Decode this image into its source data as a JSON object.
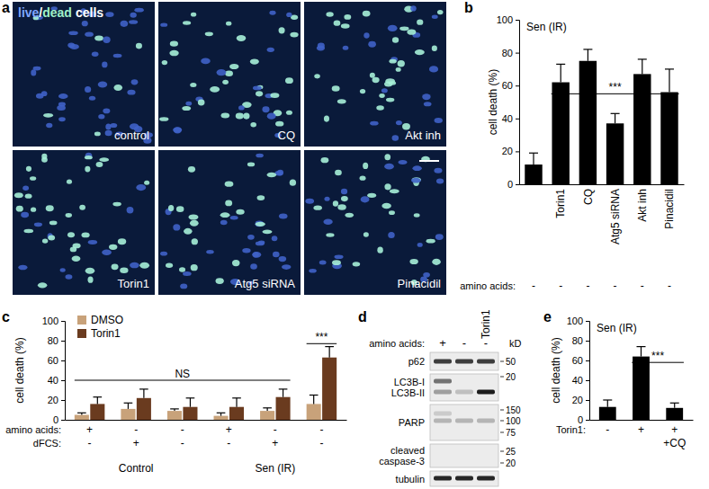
{
  "panel_labels": [
    "a",
    "b",
    "c",
    "d",
    "e"
  ],
  "micrographs": {
    "stain_legend": [
      {
        "text": "live",
        "color": "#7fa6ff"
      },
      {
        "text": "/",
        "color": "#ffffff"
      },
      {
        "text": "dead",
        "color": "#9ff0c8"
      },
      {
        "text": "cells",
        "color": "#ffffff"
      }
    ],
    "tiles": [
      "control",
      "CQ",
      "Akt inh",
      "Torin1",
      "Atg5 siRNA",
      "Pinacidil"
    ]
  },
  "blot": {
    "header_label": "amino acids:",
    "lanes": [
      "+",
      "-",
      "-"
    ],
    "treatment_row": [
      null,
      null,
      "Torin1"
    ],
    "unit": "kD",
    "rows": [
      {
        "labels": [
          "p62"
        ],
        "markers": [
          50
        ]
      },
      {
        "labels": [
          "LC3B-I",
          "LC3B-II"
        ],
        "markers": [
          20
        ]
      },
      {
        "labels": [
          "PARP"
        ],
        "markers": [
          150,
          100,
          75
        ]
      },
      {
        "labels": [
          "cleaved",
          "caspase-3"
        ],
        "markers": [
          25,
          20
        ]
      },
      {
        "labels": [
          "tubulin"
        ],
        "markers": []
      }
    ]
  },
  "chart_data": [
    {
      "type": "bar",
      "title": "Sen (IR)",
      "y_label": "cell death (%)",
      "categories": [
        null,
        "Torin1",
        "CQ",
        "Atg5 siRNA",
        "Akt inh",
        "Pinacidil"
      ],
      "values": [
        12,
        62,
        75,
        37,
        67,
        56
      ],
      "errors": [
        7,
        11,
        7,
        6,
        9,
        14
      ],
      "color": "#000000",
      "ylim": [
        0,
        100
      ],
      "yticks": [
        0,
        20,
        40,
        60,
        80,
        100
      ],
      "condition_rows": [
        {
          "label": "amino acids:",
          "values": [
            "-",
            "-",
            "-",
            "-",
            "-",
            "-"
          ]
        }
      ],
      "annotations": [
        {
          "text": "***",
          "from": 1,
          "to": 5,
          "y": 55
        }
      ]
    },
    {
      "type": "bar",
      "y_label": "cell death (%)",
      "categories": [
        null,
        null,
        null,
        null,
        null,
        null
      ],
      "series": [
        {
          "name": "DMSO",
          "color": "#c8a27a",
          "values": [
            5,
            11,
            9,
            4,
            9,
            16
          ],
          "errors": [
            2,
            6,
            2,
            3,
            3,
            9
          ]
        },
        {
          "name": "Torin1",
          "color": "#6a3b1f",
          "values": [
            16,
            22,
            13,
            13,
            23,
            63
          ],
          "errors": [
            7,
            9,
            9,
            9,
            8,
            11
          ]
        }
      ],
      "ylim": [
        0,
        100
      ],
      "yticks": [
        0,
        20,
        40,
        60,
        80,
        100
      ],
      "legend": "top-left",
      "condition_rows": [
        {
          "label": "amino acids:",
          "values": [
            "+",
            "-",
            "-",
            "+",
            "-",
            "-"
          ]
        },
        {
          "label": "dFCS:",
          "values": [
            "-",
            "+",
            "-",
            "-",
            "+",
            "-"
          ]
        }
      ],
      "groups": [
        {
          "label": "Control",
          "from": 0,
          "to": 2
        },
        {
          "label": "Sen (IR)",
          "from": 3,
          "to": 5
        }
      ],
      "annotations": [
        {
          "text": "NS",
          "from": 0,
          "to": 4,
          "y": 40
        },
        {
          "text": "***",
          "from": 5,
          "to": 5,
          "y": 77
        }
      ]
    },
    {
      "type": "bar",
      "title": "Sen (IR)",
      "y_label": "cell death (%)",
      "categories": [
        null,
        null,
        null
      ],
      "values": [
        13,
        64,
        12
      ],
      "errors": [
        7,
        10,
        5
      ],
      "color": "#000000",
      "ylim": [
        0,
        100
      ],
      "yticks": [
        0,
        20,
        40,
        60,
        80,
        100
      ],
      "condition_rows": [
        {
          "label": "Torin1:",
          "values": [
            "-",
            "+",
            "+"
          ]
        },
        {
          "values": [
            null,
            null,
            "+CQ"
          ]
        }
      ],
      "annotations": [
        {
          "text": "***",
          "from": 1,
          "to": 2,
          "y": 58
        }
      ]
    }
  ]
}
